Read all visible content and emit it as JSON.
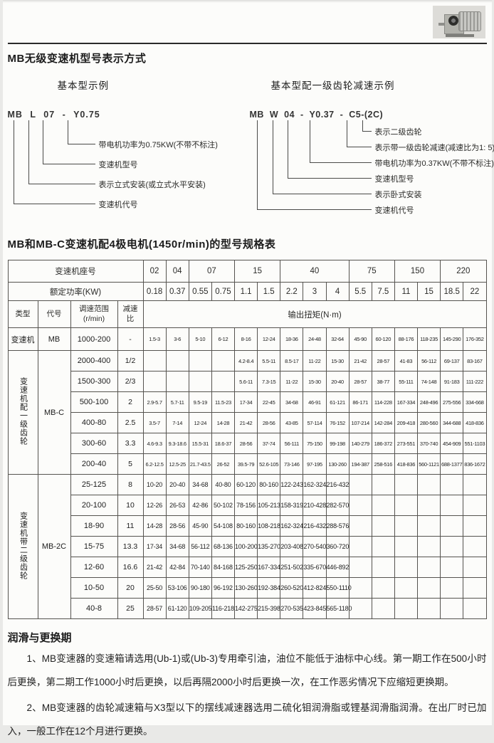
{
  "page": {
    "section1_title": "MB无级变速机型号表示方式",
    "table_title": "MB和MB-C变速机配4极电机(1450r/min)的型号规格表",
    "logo_name": "gear-motor-photo"
  },
  "diagram_left": {
    "heading": "基本型示例",
    "code": "MB L 07 - Y0.75",
    "labels": [
      "带电机功率为0.75KW(不带不标注)",
      "变速机型号",
      "表示立式安装(或立式水平安装)",
      "变速机代号"
    ]
  },
  "diagram_right": {
    "heading": "基本型配一级齿轮减速示例",
    "code": "MB W 04 - Y0.37 - C5-(2C)",
    "labels": [
      "表示二级齿轮",
      "表示带一级齿轮减速(减速比为1: 5)",
      "带电机功率为0.37KW(不带不标注)",
      "变速机型号",
      "表示卧式安装",
      "变速机代号"
    ]
  },
  "table": {
    "seat_label": "变速机座号",
    "seats": [
      {
        "label": "02",
        "span": 1
      },
      {
        "label": "04",
        "span": 1
      },
      {
        "label": "07",
        "span": 2
      },
      {
        "label": "15",
        "span": 2
      },
      {
        "label": "40",
        "span": 3
      },
      {
        "label": "75",
        "span": 2
      },
      {
        "label": "150",
        "span": 2
      },
      {
        "label": "220",
        "span": 2
      }
    ],
    "power_label": "额定功率(KW)",
    "powers": [
      "0.18",
      "0.37",
      "0.55",
      "0.75",
      "1.1",
      "1.5",
      "2.2",
      "3",
      "4",
      "5.5",
      "7.5",
      "11",
      "15",
      "18.5",
      "22"
    ],
    "col_headers": [
      "类型",
      "代号",
      "调速范围\n(r/min)",
      "减速\n比"
    ],
    "torque_label": "输出扭矩(N·m)",
    "groups": [
      {
        "type": "变速机",
        "code": "MB",
        "vertical": false,
        "rows": [
          {
            "range": "1000-200",
            "ratio": "-",
            "values": [
              "1.5-3",
              "3-6",
              "5-10",
              "6-12",
              "8-16",
              "12-24",
              "18-36",
              "24-48",
              "32-64",
              "45-90",
              "60-120",
              "88-176",
              "118-235",
              "145-290",
              "176-352"
            ]
          }
        ]
      },
      {
        "type": "变速机配一级齿轮",
        "code": "MB-C",
        "vertical": true,
        "rows": [
          {
            "range": "2000-400",
            "ratio": "1/2",
            "values": [
              "",
              "",
              "",
              "",
              "4.2-8.4",
              "5.5-11",
              "8.5-17",
              "11-22",
              "15-30",
              "21-42",
              "28-57",
              "41-83",
              "56-112",
              "69-137",
              "83-167"
            ]
          },
          {
            "range": "1500-300",
            "ratio": "2/3",
            "values": [
              "",
              "",
              "",
              "",
              "5.6-11",
              "7.3-15",
              "11-22",
              "15-30",
              "20-40",
              "28-57",
              "38-77",
              "55-111",
              "74-148",
              "91-183",
              "111-222"
            ]
          },
          {
            "range": "500-100",
            "ratio": "2",
            "values": [
              "2.9-5.7",
              "5.7-11",
              "9.5-19",
              "11.5-23",
              "17-34",
              "22-45",
              "34-68",
              "46-91",
              "61-121",
              "86-171",
              "114-228",
              "167-334",
              "248-496",
              "275-556",
              "334-668"
            ]
          },
          {
            "range": "400-80",
            "ratio": "2.5",
            "values": [
              "3.5-7",
              "7-14",
              "12-24",
              "14-28",
              "21-42",
              "28-56",
              "43-85",
              "57-114",
              "76-152",
              "107-214",
              "142-284",
              "209-418",
              "280-560",
              "344-688",
              "418-836"
            ]
          },
          {
            "range": "300-60",
            "ratio": "3.3",
            "values": [
              "4.6-9.3",
              "9.3-18.6",
              "15.5-31",
              "18.6-37",
              "28-56",
              "37-74",
              "56-111",
              "75-150",
              "99-198",
              "140-279",
              "186-372",
              "273-551",
              "370-740",
              "454-909",
              "551-1103"
            ]
          },
          {
            "range": "200-40",
            "ratio": "5",
            "values": [
              "6.2-12.5",
              "12.5-25",
              "21.7-43.5",
              "26-52",
              "39.5-79",
              "52.6-105",
              "73-146",
              "97-195",
              "130-260",
              "194-387",
              "258-516",
              "418-836",
              "560-1121",
              "688-1377",
              "836-1672"
            ]
          }
        ]
      },
      {
        "type": "变速机带二级齿轮",
        "code": "MB-2C",
        "vertical": true,
        "rows": [
          {
            "range": "25-125",
            "ratio": "8",
            "values": [
              "10-20",
              "20-40",
              "34-68",
              "40-80",
              "60-120",
              "80-160",
              "122-243",
              "162-324",
              "216-432",
              "",
              "",
              "",
              "",
              "",
              ""
            ]
          },
          {
            "range": "20-100",
            "ratio": "10",
            "values": [
              "12-26",
              "26-53",
              "42-86",
              "50-102",
              "78-156",
              "105-213",
              "158-319",
              "210-428",
              "282-570",
              "",
              "",
              "",
              "",
              "",
              ""
            ]
          },
          {
            "range": "18-90",
            "ratio": "11",
            "values": [
              "14-28",
              "28-56",
              "45-90",
              "54-108",
              "80-160",
              "108-218",
              "162-324",
              "216-432",
              "288-576",
              "",
              "",
              "",
              "",
              "",
              ""
            ]
          },
          {
            "range": "15-75",
            "ratio": "13.3",
            "values": [
              "17-34",
              "34-68",
              "56-112",
              "68-136",
              "100-200",
              "135-270",
              "203-408",
              "270-540",
              "360-720",
              "",
              "",
              "",
              "",
              "",
              ""
            ]
          },
          {
            "range": "12-60",
            "ratio": "16.6",
            "values": [
              "21-42",
              "42-84",
              "70-140",
              "84-168",
              "125-250",
              "167-334",
              "251-502",
              "335-670",
              "446-892",
              "",
              "",
              "",
              "",
              "",
              ""
            ]
          },
          {
            "range": "10-50",
            "ratio": "20",
            "values": [
              "25-50",
              "53-106",
              "90-180",
              "96-192",
              "130-260",
              "192-384",
              "260-520",
              "412-824",
              "550-1110",
              "",
              "",
              "",
              "",
              "",
              ""
            ]
          },
          {
            "range": "40-8",
            "ratio": "25",
            "values": [
              "28-57",
              "61-120",
              "109-205",
              "116-218",
              "142-275",
              "215-398",
              "270-535",
              "423-845",
              "565-1180",
              "",
              "",
              "",
              "",
              "",
              ""
            ]
          }
        ]
      }
    ]
  },
  "footer": {
    "heading": "润滑与更换期",
    "para1": "1、MB变速器的变速箱请选用(Ub-1)或(Ub-3)专用牵引油，油位不能低于油标中心线。第一期工作在500小时后更换，第二期工作1000小时后更换，以后再隔2000小时后更换一次，在工作恶劣情况下应缩短更换期。",
    "para2": "2、MB变速器的齿轮减速箱与X3型以下的摆线减速器选用二硫化钼润滑脂或锂基润滑脂润滑。在出厂时已加入，一般工作在12个月进行更换。"
  }
}
